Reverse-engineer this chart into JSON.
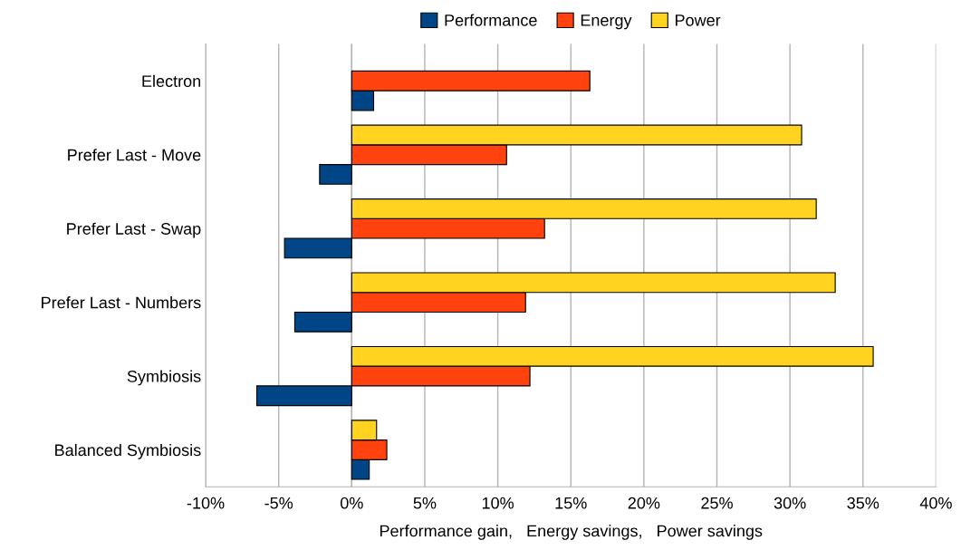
{
  "chart_data": {
    "type": "bar",
    "orientation": "horizontal",
    "categories": [
      "Electron",
      "Prefer Last - Move",
      "Prefer Last - Swap",
      "Prefer Last - Numbers",
      "Symbiosis",
      "Balanced Symbiosis"
    ],
    "series": [
      {
        "name": "Performance",
        "color": "#004586",
        "values": [
          1.5,
          -2.2,
          -4.6,
          -3.9,
          -6.5,
          1.2
        ]
      },
      {
        "name": "Energy",
        "color": "#ff420e",
        "values": [
          16.3,
          10.6,
          13.2,
          11.9,
          12.2,
          2.4
        ]
      },
      {
        "name": "Power",
        "color": "#ffd320",
        "values": [
          null,
          30.8,
          31.8,
          33.1,
          35.7,
          1.7
        ]
      }
    ],
    "xlim": [
      -10,
      40
    ],
    "xticks": [
      {
        "value": -10,
        "label": "-10%"
      },
      {
        "value": -5,
        "label": "-5%"
      },
      {
        "value": 0,
        "label": "0%"
      },
      {
        "value": 5,
        "label": "5%"
      },
      {
        "value": 10,
        "label": "10%"
      },
      {
        "value": 15,
        "label": "15%"
      },
      {
        "value": 20,
        "label": "20%"
      },
      {
        "value": 25,
        "label": "25%"
      },
      {
        "value": 30,
        "label": "30%"
      },
      {
        "value": 35,
        "label": "35%"
      },
      {
        "value": 40,
        "label": "40%"
      }
    ],
    "xlabel": "Performance gain,   Energy savings,   Power savings",
    "grid": "x",
    "legend": "top"
  }
}
